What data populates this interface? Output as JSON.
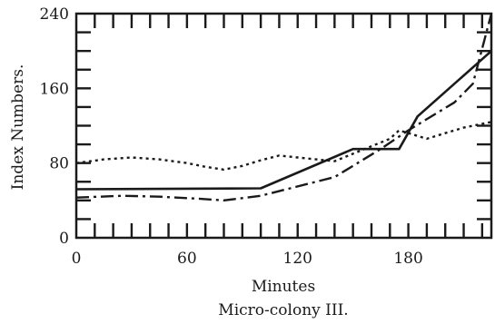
{
  "chart_data": {
    "type": "line",
    "title": "",
    "caption": "Micro-colony III.",
    "xlabel": "Minutes",
    "ylabel": "Index Numbers.",
    "xlim": [
      0,
      225
    ],
    "ylim": [
      0,
      240
    ],
    "xticks": [
      0,
      60,
      120,
      180
    ],
    "yticks": [
      0,
      80,
      160,
      240
    ],
    "grid": false,
    "series": [
      {
        "style": "solid",
        "x": [
          0,
          100,
          150,
          175,
          185,
          225
        ],
        "y": [
          52,
          53,
          95,
          95,
          130,
          200
        ]
      },
      {
        "style": "dash-dot",
        "x": [
          0,
          25,
          45,
          65,
          80,
          100,
          140,
          165,
          180,
          205,
          215,
          225
        ],
        "y": [
          43,
          45,
          44,
          42,
          40,
          45,
          65,
          95,
          115,
          145,
          165,
          240
        ]
      },
      {
        "style": "dotted",
        "x": [
          0,
          15,
          30,
          45,
          60,
          70,
          80,
          90,
          100,
          110,
          120,
          130,
          140,
          150,
          160,
          170,
          175,
          180,
          190,
          200,
          210,
          225
        ],
        "y": [
          80,
          84,
          86,
          84,
          80,
          76,
          73,
          77,
          83,
          88,
          86,
          84,
          82,
          90,
          98,
          106,
          115,
          112,
          106,
          112,
          118,
          124
        ]
      }
    ]
  }
}
